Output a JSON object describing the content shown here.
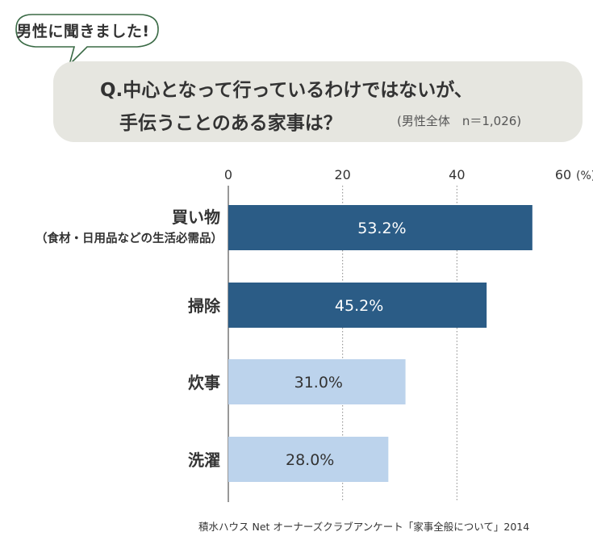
{
  "header": {
    "bubble": "男性に聞きました!",
    "question_line1": "Q.中心となって行っているわけではないが、",
    "question_line2": "手伝うことのある家事は？",
    "note": "(男性全体　n＝1,026)"
  },
  "chart_data": {
    "type": "bar",
    "orientation": "horizontal",
    "categories": [
      "買い物\n（食材・日用品などの生活必需品）",
      "掃除",
      "炊事",
      "洗濯"
    ],
    "values": [
      53.2,
      45.2,
      31.0,
      28.0
    ],
    "value_labels": [
      "53.2%",
      "45.2%",
      "31.0%",
      "28.0%"
    ],
    "xlim": [
      0,
      60
    ],
    "xticks": [
      0,
      20,
      40,
      60
    ],
    "unit": "(%)",
    "grid": "vertical dotted",
    "colors": [
      "#2b5c86",
      "#2b5c86",
      "#bcd3ec",
      "#bcd3ec"
    ],
    "label_colors": [
      "#ffffff",
      "#ffffff",
      "#333333",
      "#333333"
    ]
  },
  "source": "積水ハウス Net オーナーズクラブアンケート「家事全般について」2014"
}
